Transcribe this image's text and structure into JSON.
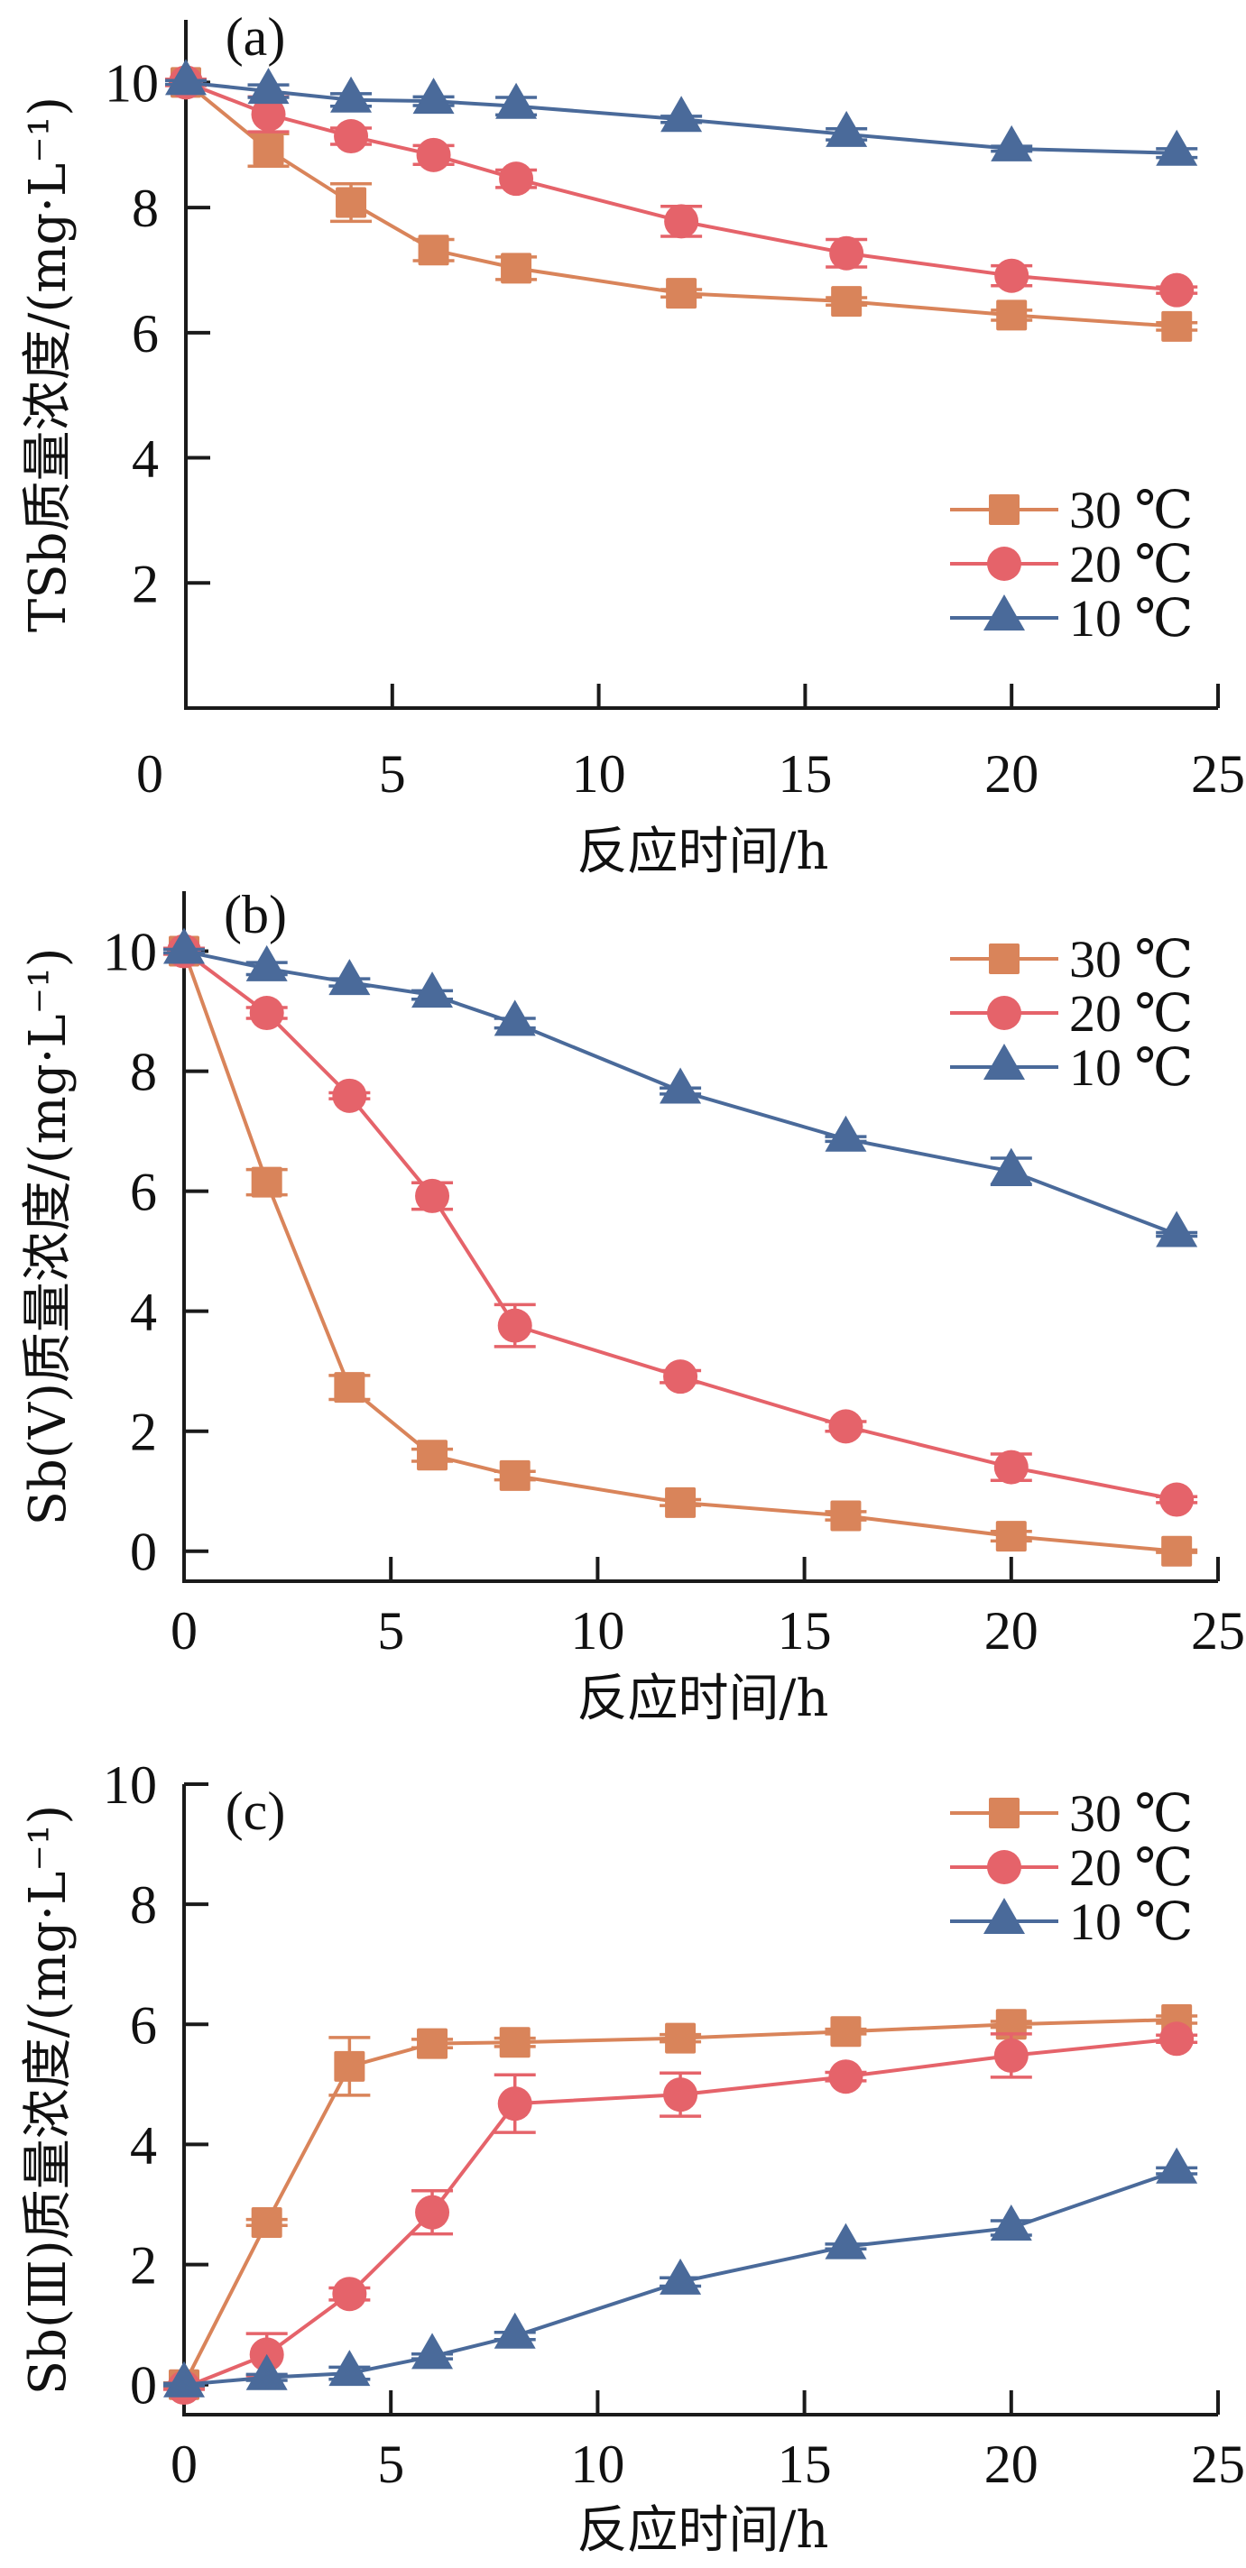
{
  "colors": {
    "30C": "#D9845A",
    "20C": "#E5636A",
    "10C": "#4A6A9A",
    "axis": "#1a1a1a"
  },
  "chart_data": [
    {
      "type": "line",
      "panel_label": "(a)",
      "title": "",
      "xlabel": "反应时间/h",
      "ylabel": "TSb质量浓度/(mg·L⁻¹)",
      "xlim": [
        0,
        25
      ],
      "ylim": [
        0,
        11
      ],
      "xticks": [
        0,
        5,
        10,
        15,
        20,
        25
      ],
      "yticks": [
        2,
        4,
        6,
        8,
        10
      ],
      "grid": false,
      "legend_position": "bottom-right",
      "x": [
        0,
        2,
        4,
        6,
        8,
        12,
        16,
        20,
        24
      ],
      "series": [
        {
          "name": "30 ℃",
          "key": "30C",
          "marker": "square",
          "values": [
            10.0,
            8.92,
            8.08,
            7.32,
            7.03,
            6.63,
            6.5,
            6.28,
            6.1
          ],
          "errors": [
            0.05,
            0.26,
            0.3,
            0.17,
            0.18,
            0.06,
            0.06,
            0.08,
            0.06
          ]
        },
        {
          "name": "20 ℃",
          "key": "20C",
          "marker": "circle",
          "values": [
            10.0,
            9.49,
            9.14,
            8.84,
            8.46,
            7.78,
            7.27,
            6.91,
            6.68
          ],
          "errors": [
            0.05,
            0.28,
            0.13,
            0.15,
            0.14,
            0.24,
            0.22,
            0.16,
            0.05
          ]
        },
        {
          "name": "10 ℃",
          "key": "10C",
          "marker": "triangle",
          "values": [
            10.0,
            9.86,
            9.72,
            9.7,
            9.62,
            9.41,
            9.17,
            8.94,
            8.87
          ],
          "errors": [
            0.03,
            0.1,
            0.1,
            0.07,
            0.14,
            0.05,
            0.09,
            0.04,
            0.07
          ]
        }
      ]
    },
    {
      "type": "line",
      "panel_label": "(b)",
      "title": "",
      "xlabel": "反应时间/h",
      "ylabel": "Sb(Ⅴ)质量浓度/(mg·L⁻¹)",
      "xlim": [
        0,
        25
      ],
      "ylim": [
        -0.5,
        11
      ],
      "xticks": [
        0,
        5,
        10,
        15,
        20,
        25
      ],
      "yticks": [
        0,
        2,
        4,
        6,
        8,
        10
      ],
      "grid": false,
      "legend_position": "top-right",
      "x": [
        0,
        2,
        4,
        6,
        8,
        12,
        16,
        20,
        24
      ],
      "series": [
        {
          "name": "30 ℃",
          "key": "30C",
          "marker": "square",
          "values": [
            10.0,
            6.15,
            2.73,
            1.6,
            1.26,
            0.81,
            0.59,
            0.25,
            0.0
          ],
          "errors": [
            0.05,
            0.21,
            0.2,
            0.1,
            0.07,
            0.05,
            0.07,
            0.08,
            0.02
          ]
        },
        {
          "name": "20 ℃",
          "key": "20C",
          "marker": "circle",
          "values": [
            10.0,
            8.97,
            7.59,
            5.92,
            3.76,
            2.91,
            2.08,
            1.4,
            0.86
          ],
          "errors": [
            0.05,
            0.09,
            0.05,
            0.22,
            0.35,
            0.1,
            0.08,
            0.22,
            0.05
          ]
        },
        {
          "name": "10 ℃",
          "key": "10C",
          "marker": "triangle",
          "values": [
            10.0,
            9.71,
            9.48,
            9.27,
            8.8,
            7.67,
            6.87,
            6.33,
            5.28
          ],
          "errors": [
            0.03,
            0.1,
            0.06,
            0.07,
            0.08,
            0.05,
            0.04,
            0.22,
            0.03
          ]
        }
      ]
    },
    {
      "type": "line",
      "panel_label": "(c)",
      "title": "",
      "xlabel": "反应时间/h",
      "ylabel": "Sb(Ⅲ)质量浓度/(mg·L⁻¹)",
      "xlim": [
        0,
        25
      ],
      "ylim": [
        -0.5,
        10
      ],
      "xticks": [
        0,
        5,
        10,
        15,
        20,
        25
      ],
      "yticks": [
        0,
        2,
        4,
        6,
        8,
        10
      ],
      "grid": false,
      "legend_position": "top-right",
      "x": [
        0,
        2,
        4,
        6,
        8,
        12,
        16,
        20,
        24
      ],
      "series": [
        {
          "name": "30 ℃",
          "key": "30C",
          "marker": "square",
          "values": [
            0.0,
            2.7,
            5.3,
            5.68,
            5.7,
            5.77,
            5.88,
            6.0,
            6.08
          ],
          "errors": [
            0.03,
            0.05,
            0.48,
            0.07,
            0.07,
            0.06,
            0.04,
            0.05,
            0.06
          ]
        },
        {
          "name": "20 ℃",
          "key": "20C",
          "marker": "circle",
          "values": [
            -0.05,
            0.5,
            1.51,
            2.87,
            4.68,
            4.83,
            5.13,
            5.48,
            5.76
          ],
          "errors": [
            0.03,
            0.35,
            0.1,
            0.36,
            0.48,
            0.36,
            0.07,
            0.36,
            0.06
          ]
        },
        {
          "name": "10 ℃",
          "key": "10C",
          "marker": "triangle",
          "values": [
            0.0,
            0.12,
            0.19,
            0.47,
            0.81,
            1.71,
            2.3,
            2.61,
            3.56
          ],
          "errors": [
            0.02,
            0.05,
            0.1,
            0.04,
            0.06,
            0.07,
            0.04,
            0.12,
            0.05
          ]
        }
      ]
    }
  ]
}
